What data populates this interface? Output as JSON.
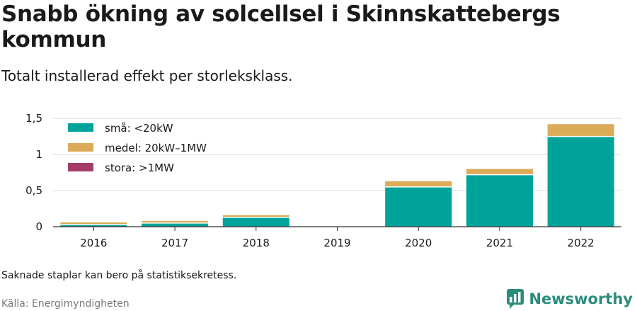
{
  "header": {
    "title": "Snabb ökning av solcellsel i Skinnskattebergs kommun",
    "subtitle": "Totalt installerad effekt per storleksklass."
  },
  "footer": {
    "note": "Saknade staplar kan bero på statistiksekretess.",
    "source": "Källa: Energimyndigheten",
    "brand": "Newsworthy",
    "brand_icon": "newsworthy-logo-icon",
    "brand_color": "#2a8c7a"
  },
  "chart_data": {
    "type": "bar",
    "stacked": true,
    "categories": [
      "2016",
      "2017",
      "2018",
      "2019",
      "2020",
      "2021",
      "2022"
    ],
    "series": [
      {
        "name": "små: <20kW",
        "color": "#00a39a",
        "values": [
          0.03,
          0.05,
          0.13,
          null,
          0.55,
          0.72,
          1.25
        ]
      },
      {
        "name": "medel: 20kW–1MW",
        "color": "#dcab58",
        "values": [
          0.03,
          0.03,
          0.03,
          null,
          0.08,
          0.08,
          0.17
        ]
      },
      {
        "name": "stora: >1MW",
        "color": "#a33d68",
        "values": [
          0,
          0,
          0,
          null,
          0,
          0,
          0
        ]
      }
    ],
    "yticks": [
      {
        "value": 0,
        "label": "0"
      },
      {
        "value": 0.5,
        "label": "0,5"
      },
      {
        "value": 1,
        "label": "1"
      },
      {
        "value": 1.5,
        "label": "1,5"
      }
    ],
    "ylim": [
      0,
      1.55
    ],
    "xlabel": "",
    "ylabel": "",
    "grid": true,
    "legend_position": "top-left"
  }
}
